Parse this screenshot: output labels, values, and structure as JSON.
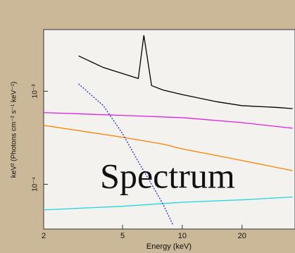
{
  "chart_data": {
    "type": "line",
    "annotation": "Spectrum",
    "x_label": "Energy (keV)",
    "y_label": "keV² (Photons cm⁻² s⁻¹ keV⁻¹)",
    "xscale": "log",
    "yscale": "log",
    "xlim": [
      2,
      37
    ],
    "ylim": [
      3.3e-05,
      0.0046
    ],
    "xticks": [
      2,
      5,
      10,
      20
    ],
    "yticks": [
      {
        "value": 0.0001,
        "label": "10⁻⁴"
      },
      {
        "value": 0.001,
        "label": "10⁻³"
      }
    ],
    "series": [
      {
        "color": "#000000",
        "style": "solid",
        "x": [
          3,
          4,
          5,
          6,
          6.4,
          7,
          8,
          10,
          15,
          20,
          30,
          36
        ],
        "values": [
          0.0024,
          0.0018,
          0.00155,
          0.00137,
          0.004,
          0.00115,
          0.00103,
          0.00092,
          0.00077,
          0.0007,
          0.00067,
          0.00065
        ]
      },
      {
        "color": "#e020e0",
        "style": "solid",
        "x": [
          2,
          5,
          10,
          20,
          36
        ],
        "values": [
          0.00059,
          0.00055,
          0.00052,
          0.00046,
          0.0004
        ]
      },
      {
        "color": "#ff8000",
        "style": "solid",
        "x": [
          2,
          5,
          8,
          10,
          20,
          36
        ],
        "values": [
          0.00043,
          0.00032,
          0.00027,
          0.00024,
          0.00018,
          0.00014
        ]
      },
      {
        "color": "#20d8e0",
        "style": "solid",
        "x": [
          2,
          5,
          10,
          20,
          36
        ],
        "values": [
          5.3e-05,
          5.8e-05,
          6.4e-05,
          6.8e-05,
          7.3e-05
        ]
      },
      {
        "color": "#2a2ad0",
        "style": "dotted",
        "x": [
          3,
          4,
          5,
          6,
          7,
          8,
          9
        ],
        "values": [
          0.0012,
          0.0007,
          0.00035,
          0.000175,
          0.0001,
          6.1e-05,
          3.6e-05
        ]
      }
    ]
  }
}
